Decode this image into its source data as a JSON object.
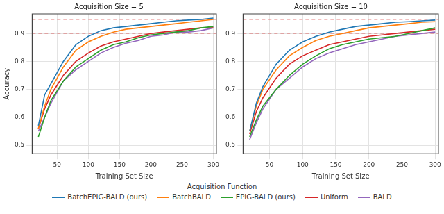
{
  "chart_data": [
    {
      "type": "line",
      "title": "Acquisition Size = 5",
      "x_label": "Training Set Size",
      "y_label": "Accuracy",
      "x": [
        20,
        30,
        40,
        60,
        80,
        100,
        120,
        140,
        160,
        180,
        200,
        220,
        240,
        260,
        280,
        300
      ],
      "series": [
        {
          "name": "BatchEPIG-BALD (ours)",
          "color": "#1f77b4",
          "values": [
            0.57,
            0.68,
            0.72,
            0.8,
            0.86,
            0.89,
            0.91,
            0.92,
            0.925,
            0.93,
            0.935,
            0.94,
            0.945,
            0.948,
            0.95,
            0.955
          ]
        },
        {
          "name": "BatchBALD",
          "color": "#ff7f0e",
          "values": [
            0.56,
            0.64,
            0.7,
            0.78,
            0.84,
            0.87,
            0.89,
            0.905,
            0.915,
            0.92,
            0.925,
            0.93,
            0.935,
            0.94,
            0.945,
            0.95
          ]
        },
        {
          "name": "EPIG-BALD (ours)",
          "color": "#2ca02c",
          "values": [
            0.53,
            0.6,
            0.66,
            0.73,
            0.78,
            0.81,
            0.84,
            0.86,
            0.87,
            0.885,
            0.895,
            0.9,
            0.905,
            0.91,
            0.92,
            0.925
          ]
        },
        {
          "name": "Uniform",
          "color": "#d62728",
          "values": [
            0.56,
            0.63,
            0.68,
            0.75,
            0.8,
            0.83,
            0.855,
            0.87,
            0.88,
            0.89,
            0.9,
            0.905,
            0.91,
            0.915,
            0.92,
            0.92
          ]
        },
        {
          "name": "BALD",
          "color": "#9467bd",
          "values": [
            0.55,
            0.6,
            0.65,
            0.73,
            0.77,
            0.8,
            0.83,
            0.85,
            0.865,
            0.875,
            0.89,
            0.895,
            0.905,
            0.905,
            0.91,
            0.92
          ]
        }
      ],
      "reference_lines": [
        0.9,
        0.95
      ],
      "xlim": [
        10,
        305
      ],
      "xticks": [
        50,
        100,
        150,
        200,
        250,
        300
      ],
      "ylim": [
        0.47,
        0.97
      ],
      "yticks": [
        0.5,
        0.6,
        0.7,
        0.8,
        0.9
      ],
      "grid": true,
      "legend": "bottom"
    },
    {
      "type": "line",
      "title": "Acquisition Size = 10",
      "x_label": "Training Set Size",
      "x": [
        20,
        30,
        40,
        60,
        80,
        100,
        120,
        140,
        160,
        180,
        200,
        220,
        240,
        260,
        280,
        300
      ],
      "series": [
        {
          "name": "BatchEPIG-BALD (ours)",
          "color": "#1f77b4",
          "values": [
            0.55,
            0.65,
            0.71,
            0.79,
            0.84,
            0.87,
            0.89,
            0.905,
            0.915,
            0.925,
            0.93,
            0.935,
            0.94,
            0.942,
            0.945,
            0.948
          ]
        },
        {
          "name": "BatchBALD",
          "color": "#ff7f0e",
          "values": [
            0.55,
            0.64,
            0.7,
            0.77,
            0.82,
            0.85,
            0.875,
            0.89,
            0.9,
            0.91,
            0.92,
            0.925,
            0.93,
            0.935,
            0.94,
            0.942
          ]
        },
        {
          "name": "EPIG-BALD (ours)",
          "color": "#2ca02c",
          "values": [
            0.53,
            0.59,
            0.64,
            0.7,
            0.75,
            0.79,
            0.82,
            0.845,
            0.86,
            0.87,
            0.88,
            0.885,
            0.89,
            0.9,
            0.91,
            0.92
          ]
        },
        {
          "name": "Uniform",
          "color": "#d62728",
          "values": [
            0.54,
            0.62,
            0.67,
            0.74,
            0.79,
            0.82,
            0.84,
            0.86,
            0.87,
            0.88,
            0.89,
            0.895,
            0.9,
            0.905,
            0.91,
            0.915
          ]
        },
        {
          "name": "BALD",
          "color": "#9467bd",
          "values": [
            0.52,
            0.58,
            0.63,
            0.7,
            0.74,
            0.78,
            0.81,
            0.83,
            0.845,
            0.86,
            0.87,
            0.88,
            0.89,
            0.895,
            0.9,
            0.905
          ]
        }
      ],
      "reference_lines": [
        0.9,
        0.95
      ],
      "xlim": [
        10,
        305
      ],
      "xticks": [
        50,
        100,
        150,
        200,
        250,
        300
      ],
      "ylim": [
        0.47,
        0.97
      ],
      "yticks": [
        0.5,
        0.6,
        0.7,
        0.8,
        0.9
      ],
      "grid": true
    }
  ],
  "legend_title": "Acquisition Function"
}
